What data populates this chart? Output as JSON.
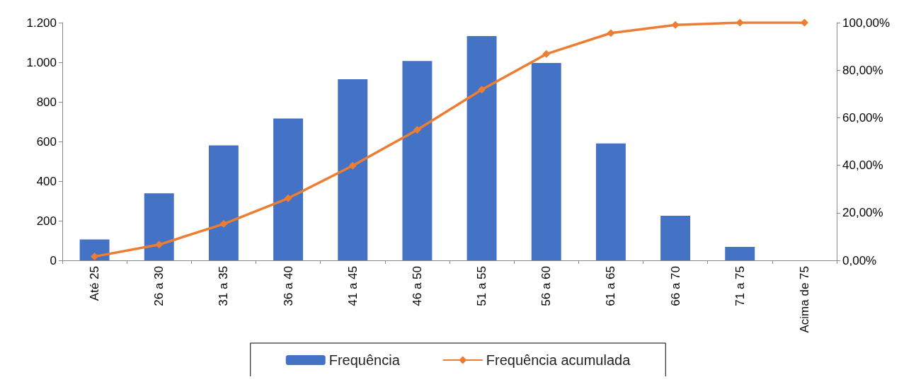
{
  "chart_data": {
    "type": "bar",
    "categories": [
      "Até 25",
      "26 a 30",
      "31 a 35",
      "36 a 40",
      "41 a 45",
      "46 a 50",
      "51 a 55",
      "56 a 60",
      "61 a 65",
      "66 a 70",
      "71 a 75",
      "Acima de 75"
    ],
    "series": [
      {
        "name": "Frequência",
        "color": "#4472c4",
        "values": [
          105,
          338,
          580,
          716,
          914,
          1006,
          1132,
          996,
          590,
          225,
          68,
          0
        ]
      },
      {
        "name": "Frequência acumulada",
        "type": "line",
        "axis": "y2",
        "color": "#ed7d31",
        "marker": "diamond",
        "values": [
          1.6,
          6.6,
          15.3,
          26.1,
          39.8,
          54.9,
          71.8,
          86.8,
          95.6,
          99.0,
          100,
          100
        ]
      }
    ],
    "ylim": [
      0,
      1200
    ],
    "yticks": [
      0,
      200,
      400,
      600,
      800,
      {
        "value": 1000,
        "label": "1.000"
      },
      {
        "value": 1200,
        "label": "1.200"
      }
    ],
    "y2lim": [
      0,
      100
    ],
    "y2ticks": [
      {
        "value": 0,
        "label": "0,00%"
      },
      {
        "value": 20,
        "label": "20,00%"
      },
      {
        "value": 40,
        "label": "40,00%"
      },
      {
        "value": 60,
        "label": "60,00%"
      },
      {
        "value": 80,
        "label": "80,00%"
      },
      {
        "value": 100,
        "label": "100,00%"
      }
    ],
    "grid": false,
    "legend": "bottom"
  }
}
